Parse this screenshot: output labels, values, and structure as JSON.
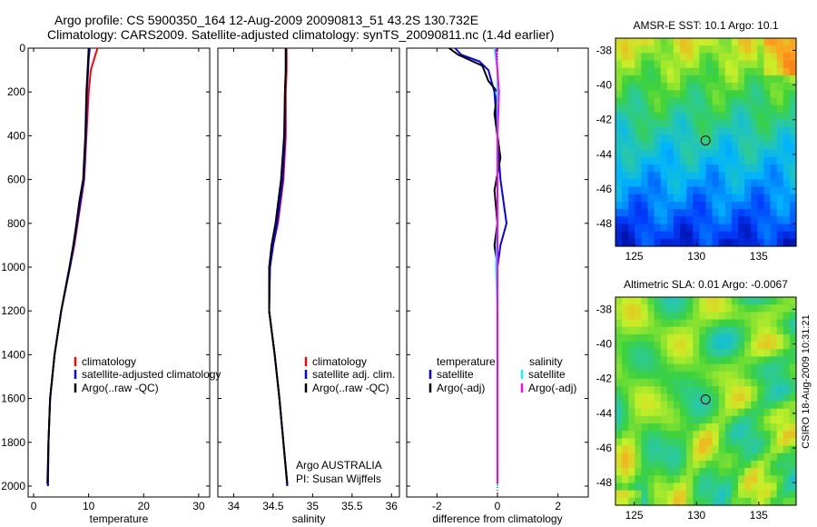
{
  "title": {
    "line1": "Argo profile: CS 5900350_164 12-Aug-2009 20090813_51 43.2S 130.732E",
    "line2": "Climatology: CARS2009. Satellite-adjusted climatology: synTS_20090811.nc (1.4d earlier)"
  },
  "colors": {
    "climatology": "#ff0000",
    "satellite": "#0000ff",
    "argo": "#000000",
    "satellite_diff_sal": "#00ffff",
    "argo_diff_sal": "#ff00ff"
  },
  "chart_data": [
    {
      "type": "line",
      "xlabel": "temperature",
      "xlim": [
        -1,
        32
      ],
      "ylim": [
        2050,
        0
      ],
      "xticks": [
        "0",
        "10",
        "20",
        "30"
      ],
      "yticks": [
        "0",
        "200",
        "400",
        "600",
        "800",
        "1000",
        "1200",
        "1400",
        "1600",
        "1800",
        "2000"
      ],
      "legend": [
        "climatology",
        "satellite-adjusted climatology",
        "Argo(..raw -QC)"
      ],
      "series": [
        {
          "name": "climatology",
          "color": "red",
          "points": [
            [
              11.6,
              0
            ],
            [
              11.0,
              50
            ],
            [
              10.4,
              100
            ],
            [
              10.0,
              200
            ],
            [
              9.6,
              400
            ],
            [
              9.2,
              600
            ],
            [
              8.0,
              800
            ],
            [
              7.4,
              900
            ],
            [
              6.6,
              1000
            ],
            [
              5.0,
              1200
            ],
            [
              3.8,
              1400
            ],
            [
              3.0,
              1600
            ],
            [
              2.7,
              1800
            ],
            [
              2.6,
              2000
            ]
          ]
        },
        {
          "name": "satellite-adjusted climatology",
          "color": "blue",
          "points": [
            [
              10.2,
              0
            ],
            [
              10.0,
              50
            ],
            [
              9.9,
              100
            ],
            [
              9.7,
              200
            ],
            [
              9.5,
              400
            ],
            [
              9.1,
              600
            ],
            [
              7.9,
              800
            ],
            [
              7.3,
              900
            ],
            [
              6.6,
              1000
            ],
            [
              5.0,
              1200
            ],
            [
              3.8,
              1400
            ],
            [
              3.0,
              1600
            ],
            [
              2.7,
              1800
            ],
            [
              2.6,
              2000
            ]
          ]
        },
        {
          "name": "Argo(..raw -QC)",
          "color": "black",
          "points": [
            [
              10.0,
              0
            ],
            [
              9.8,
              100
            ],
            [
              9.6,
              200
            ],
            [
              9.4,
              400
            ],
            [
              9.0,
              600
            ],
            [
              8.3,
              700
            ],
            [
              7.8,
              800
            ],
            [
              7.2,
              900
            ],
            [
              6.5,
              1000
            ],
            [
              5.0,
              1200
            ],
            [
              3.8,
              1400
            ],
            [
              3.0,
              1600
            ],
            [
              2.7,
              1800
            ],
            [
              2.5,
              1990
            ]
          ]
        }
      ]
    },
    {
      "type": "line",
      "xlabel": "salinity",
      "xlim": [
        33.8,
        36.1
      ],
      "ylim": [
        2050,
        0
      ],
      "xticks": [
        "34",
        "34.5",
        "35",
        "35.5",
        "36"
      ],
      "yticks": [],
      "legend": [
        "climatology",
        "satellite adj. clim.",
        "Argo(..raw -QC)"
      ],
      "annotation": [
        "Argo AUSTRALIA",
        "PI: Susan Wijffels"
      ],
      "series": [
        {
          "name": "climatology",
          "color": "red",
          "points": [
            [
              34.67,
              0
            ],
            [
              34.67,
              100
            ],
            [
              34.66,
              200
            ],
            [
              34.66,
              400
            ],
            [
              34.63,
              600
            ],
            [
              34.56,
              800
            ],
            [
              34.5,
              900
            ],
            [
              34.46,
              1000
            ],
            [
              34.45,
              1200
            ],
            [
              34.52,
              1400
            ],
            [
              34.58,
              1600
            ],
            [
              34.63,
              1800
            ],
            [
              34.68,
              2000
            ]
          ]
        },
        {
          "name": "satellite adj. clim.",
          "color": "blue",
          "points": [
            [
              34.66,
              0
            ],
            [
              34.66,
              100
            ],
            [
              34.65,
              200
            ],
            [
              34.65,
              400
            ],
            [
              34.62,
              600
            ],
            [
              34.55,
              800
            ],
            [
              34.5,
              900
            ],
            [
              34.46,
              1000
            ],
            [
              34.45,
              1200
            ],
            [
              34.52,
              1400
            ],
            [
              34.58,
              1600
            ],
            [
              34.63,
              1800
            ],
            [
              34.68,
              2000
            ]
          ]
        },
        {
          "name": "Argo(..raw -QC)",
          "color": "black",
          "points": [
            [
              34.66,
              0
            ],
            [
              34.66,
              100
            ],
            [
              34.65,
              200
            ],
            [
              34.64,
              400
            ],
            [
              34.6,
              600
            ],
            [
              34.53,
              800
            ],
            [
              34.48,
              900
            ],
            [
              34.45,
              1000
            ],
            [
              34.45,
              1200
            ],
            [
              34.52,
              1400
            ],
            [
              34.58,
              1600
            ],
            [
              34.63,
              1800
            ],
            [
              34.68,
              1990
            ]
          ]
        }
      ]
    },
    {
      "type": "line",
      "xlabel": "difference from climatology",
      "xlim": [
        -3,
        3
      ],
      "ylim": [
        2050,
        0
      ],
      "xticks": [
        "-2",
        "0",
        "2"
      ],
      "yticks": [],
      "legend": [
        "temperature",
        "satellite",
        "Argo(-adj)",
        "salinity",
        "satellite",
        "Argo(-adj)"
      ],
      "series": [
        {
          "name": "temperature satellite",
          "color": "blue",
          "points": [
            [
              -1.4,
              0
            ],
            [
              -1.2,
              30
            ],
            [
              -0.6,
              60
            ],
            [
              -0.3,
              100
            ],
            [
              -0.1,
              200
            ],
            [
              0.0,
              400
            ],
            [
              0.1,
              600
            ],
            [
              0.3,
              800
            ],
            [
              0.1,
              900
            ],
            [
              0.0,
              1000
            ],
            [
              0.0,
              1200
            ],
            [
              0.0,
              1400
            ],
            [
              0.0,
              1600
            ],
            [
              0.0,
              1800
            ],
            [
              0.0,
              2000
            ]
          ]
        },
        {
          "name": "temperature Argo(-adj)",
          "color": "black",
          "points": [
            [
              -1.6,
              0
            ],
            [
              -1.3,
              30
            ],
            [
              -0.5,
              80
            ],
            [
              -0.3,
              150
            ],
            [
              0.0,
              200
            ],
            [
              -0.1,
              300
            ],
            [
              0.0,
              400
            ],
            [
              0.1,
              500
            ],
            [
              -0.1,
              650
            ],
            [
              0.0,
              800
            ],
            [
              -0.1,
              900
            ],
            [
              0.0,
              1000
            ],
            [
              0.0,
              1200
            ],
            [
              0.0,
              1400
            ],
            [
              0.0,
              1600
            ],
            [
              0.0,
              1800
            ],
            [
              0.0,
              1990
            ]
          ]
        },
        {
          "name": "salinity satellite",
          "color": "cyan",
          "points": [
            [
              -0.1,
              0
            ],
            [
              0.0,
              100
            ],
            [
              0.0,
              200
            ],
            [
              0.0,
              400
            ],
            [
              0.0,
              600
            ],
            [
              0.0,
              800
            ],
            [
              -0.05,
              1000
            ],
            [
              0.0,
              1200
            ],
            [
              0.0,
              1400
            ],
            [
              0.0,
              1600
            ],
            [
              0.0,
              1800
            ],
            [
              0.0,
              2000
            ]
          ]
        },
        {
          "name": "salinity Argo(-adj)",
          "color": "magenta",
          "points": [
            [
              -0.05,
              0
            ],
            [
              0.0,
              100
            ],
            [
              0.05,
              200
            ],
            [
              0.0,
              400
            ],
            [
              0.0,
              600
            ],
            [
              0.0,
              800
            ],
            [
              0.0,
              1000
            ],
            [
              0.0,
              1200
            ],
            [
              0.0,
              1400
            ],
            [
              0.0,
              1600
            ],
            [
              0.0,
              1800
            ],
            [
              0.0,
              1990
            ]
          ]
        }
      ]
    },
    {
      "type": "heatmap",
      "title": "AMSR-E SST: 10.1  Argo: 10.1",
      "xticks": [
        "125",
        "130",
        "135"
      ],
      "yticks": [
        "-38",
        "-40",
        "-42",
        "-44",
        "-46",
        "-48"
      ],
      "xlim": [
        123.5,
        138
      ],
      "ylim": [
        -49.3,
        -37.3
      ],
      "marker": [
        130.732,
        -43.2
      ]
    },
    {
      "type": "heatmap",
      "title": "Altimetric SLA: 0.01  Argo: -0.0067",
      "xticks": [
        "125",
        "130",
        "135"
      ],
      "yticks": [
        "-38",
        "-40",
        "-42",
        "-44",
        "-46",
        "-48"
      ],
      "xlim": [
        123.5,
        138
      ],
      "ylim": [
        -49.3,
        -37.3
      ],
      "marker": [
        130.732,
        -43.2
      ]
    }
  ],
  "side_label": "CSIRO 18-Aug-2009 10:31:21"
}
